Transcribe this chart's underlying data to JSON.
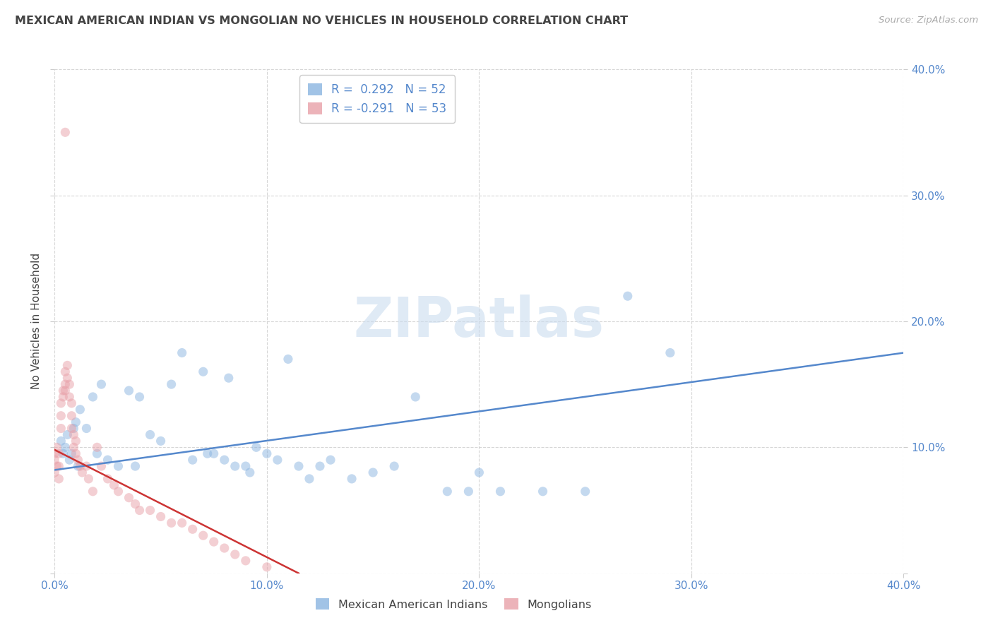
{
  "title": "MEXICAN AMERICAN INDIAN VS MONGOLIAN NO VEHICLES IN HOUSEHOLD CORRELATION CHART",
  "source": "Source: ZipAtlas.com",
  "ylabel": "No Vehicles in Household",
  "watermark": "ZIPatlas",
  "xlim": [
    0.0,
    0.4
  ],
  "ylim": [
    0.0,
    0.4
  ],
  "xticks": [
    0.0,
    0.1,
    0.2,
    0.3,
    0.4
  ],
  "yticks": [
    0.0,
    0.1,
    0.2,
    0.3,
    0.4
  ],
  "xtick_labels": [
    "0.0%",
    "10.0%",
    "20.0%",
    "30.0%",
    "40.0%"
  ],
  "right_ytick_labels": [
    "",
    "10.0%",
    "20.0%",
    "30.0%",
    "40.0%"
  ],
  "blue_color": "#8ab4e0",
  "pink_color": "#e8a0a8",
  "blue_line_color": "#5588cc",
  "pink_line_color": "#cc3333",
  "legend_blue_label": "R =  0.292   N = 52",
  "legend_pink_label": "R = -0.291   N = 53",
  "legend_mexican": "Mexican American Indians",
  "legend_mongolian": "Mongolians",
  "title_color": "#444444",
  "axis_color": "#5588cc",
  "grid_color": "#cccccc",
  "blue_scatter_x": [
    0.003,
    0.004,
    0.005,
    0.006,
    0.007,
    0.008,
    0.009,
    0.01,
    0.011,
    0.012,
    0.015,
    0.018,
    0.02,
    0.022,
    0.025,
    0.03,
    0.035,
    0.038,
    0.04,
    0.045,
    0.05,
    0.055,
    0.06,
    0.065,
    0.07,
    0.072,
    0.075,
    0.08,
    0.082,
    0.085,
    0.09,
    0.092,
    0.095,
    0.1,
    0.105,
    0.11,
    0.115,
    0.12,
    0.125,
    0.13,
    0.14,
    0.15,
    0.16,
    0.17,
    0.185,
    0.195,
    0.2,
    0.21,
    0.23,
    0.25,
    0.27,
    0.29
  ],
  "blue_scatter_y": [
    0.105,
    0.095,
    0.1,
    0.11,
    0.09,
    0.095,
    0.115,
    0.12,
    0.085,
    0.13,
    0.115,
    0.14,
    0.095,
    0.15,
    0.09,
    0.085,
    0.145,
    0.085,
    0.14,
    0.11,
    0.105,
    0.15,
    0.175,
    0.09,
    0.16,
    0.095,
    0.095,
    0.09,
    0.155,
    0.085,
    0.085,
    0.08,
    0.1,
    0.095,
    0.09,
    0.17,
    0.085,
    0.075,
    0.085,
    0.09,
    0.075,
    0.08,
    0.085,
    0.14,
    0.065,
    0.065,
    0.08,
    0.065,
    0.065,
    0.065,
    0.22,
    0.175
  ],
  "pink_scatter_x": [
    0.0,
    0.0,
    0.0,
    0.001,
    0.001,
    0.002,
    0.002,
    0.002,
    0.003,
    0.003,
    0.003,
    0.004,
    0.004,
    0.005,
    0.005,
    0.005,
    0.006,
    0.006,
    0.007,
    0.007,
    0.008,
    0.008,
    0.008,
    0.009,
    0.009,
    0.01,
    0.01,
    0.011,
    0.012,
    0.013,
    0.015,
    0.016,
    0.018,
    0.02,
    0.022,
    0.025,
    0.028,
    0.03,
    0.035,
    0.038,
    0.04,
    0.045,
    0.05,
    0.055,
    0.06,
    0.065,
    0.07,
    0.075,
    0.08,
    0.085,
    0.09,
    0.1,
    0.005
  ],
  "pink_scatter_y": [
    0.095,
    0.09,
    0.08,
    0.1,
    0.085,
    0.095,
    0.085,
    0.075,
    0.135,
    0.125,
    0.115,
    0.145,
    0.14,
    0.16,
    0.15,
    0.145,
    0.165,
    0.155,
    0.15,
    0.14,
    0.135,
    0.125,
    0.115,
    0.11,
    0.1,
    0.105,
    0.095,
    0.09,
    0.085,
    0.08,
    0.085,
    0.075,
    0.065,
    0.1,
    0.085,
    0.075,
    0.07,
    0.065,
    0.06,
    0.055,
    0.05,
    0.05,
    0.045,
    0.04,
    0.04,
    0.035,
    0.03,
    0.025,
    0.02,
    0.015,
    0.01,
    0.005,
    0.35
  ],
  "blue_line_x": [
    0.0,
    0.4
  ],
  "blue_line_y": [
    0.082,
    0.175
  ],
  "pink_line_x": [
    0.0,
    0.115
  ],
  "pink_line_y": [
    0.098,
    0.0
  ],
  "marker_size": 90,
  "alpha": 0.5,
  "background": "#ffffff",
  "fig_background": "#ffffff"
}
